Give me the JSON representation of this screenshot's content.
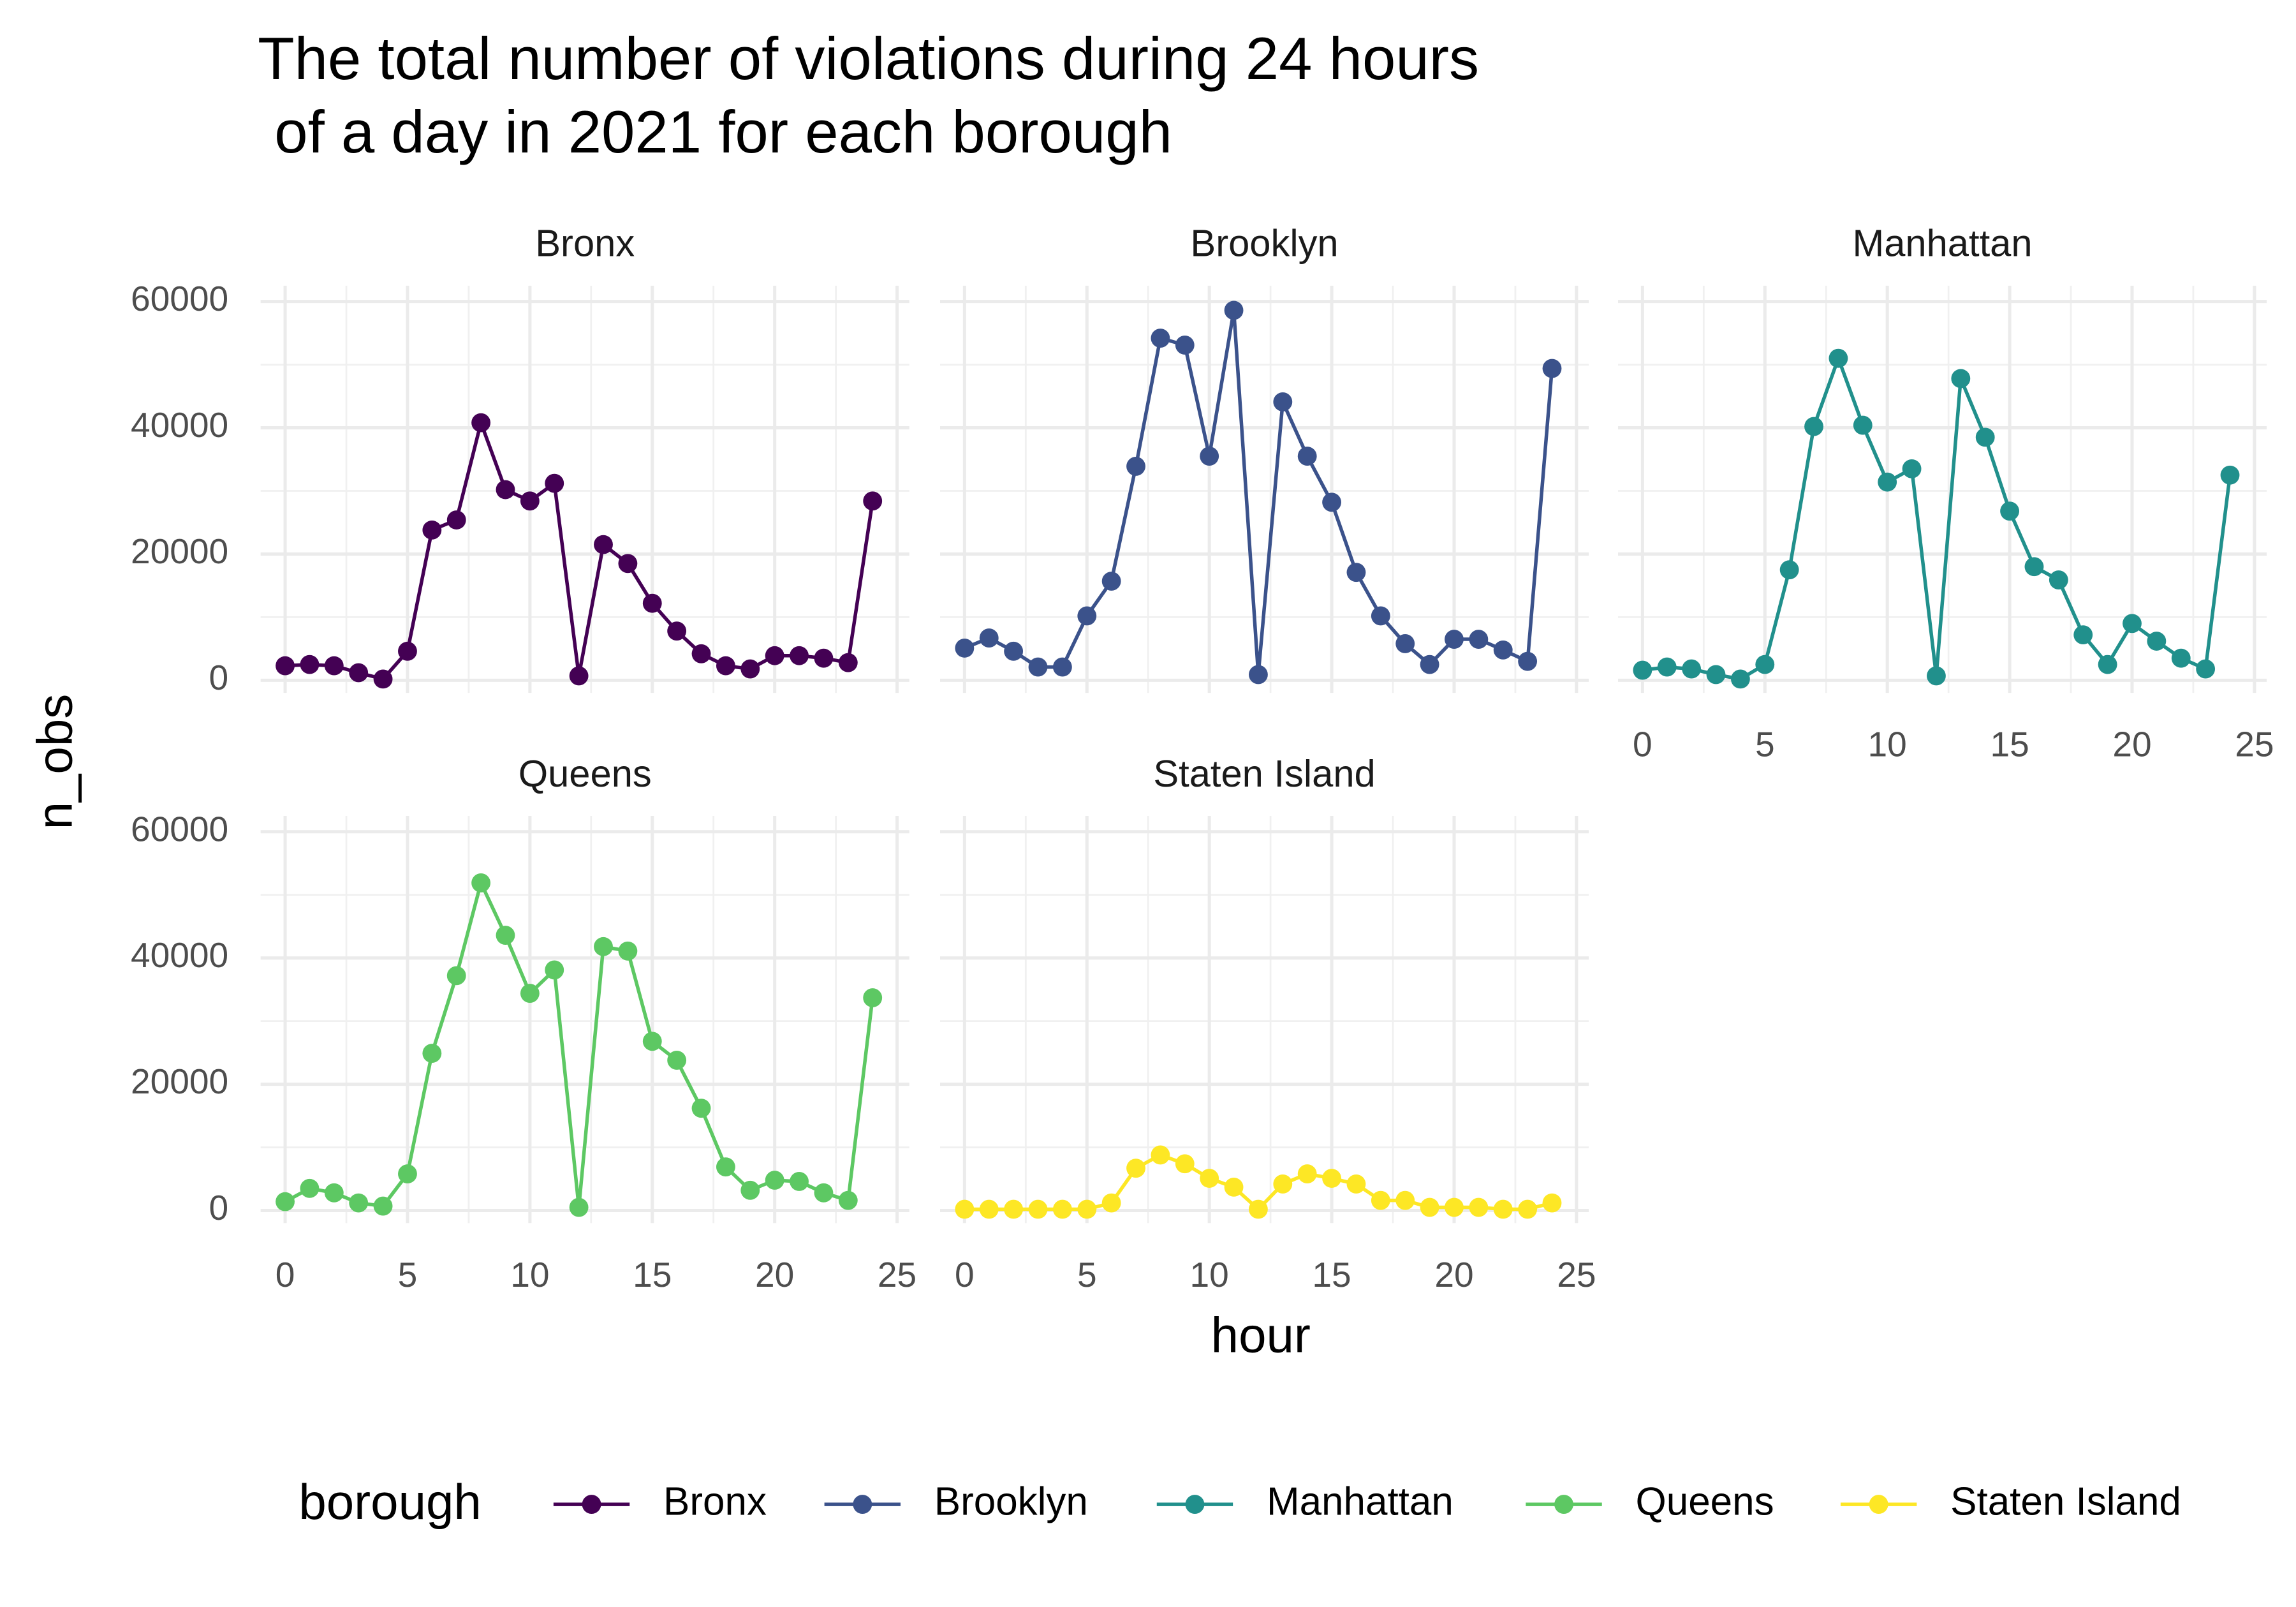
{
  "chart_data": {
    "type": "line",
    "title": [
      "The total number of violations during 24 hours",
      " of a day in 2021 for each borough"
    ],
    "x_label": "hour",
    "y_label": "n_obs",
    "legend_title": "borough",
    "legend_position": "bottom",
    "grid": true,
    "x": [
      0,
      1,
      2,
      3,
      4,
      5,
      6,
      7,
      8,
      9,
      10,
      11,
      12,
      13,
      14,
      15,
      16,
      17,
      18,
      19,
      20,
      21,
      22,
      23,
      24
    ],
    "xlim": [
      -1,
      25.5
    ],
    "xticks": [
      0,
      5,
      10,
      15,
      20,
      25
    ],
    "ylim": [
      -2000,
      62500
    ],
    "yticks": [
      0,
      20000,
      40000,
      60000
    ],
    "series": [
      {
        "name": "Bronx",
        "color": "#440154",
        "values": [
          2300,
          2500,
          2300,
          1200,
          200,
          4600,
          23800,
          25400,
          40800,
          30200,
          28400,
          31200,
          700,
          21500,
          18500,
          12200,
          7800,
          4200,
          2300,
          1800,
          3900,
          3900,
          3500,
          2800,
          28400
        ]
      },
      {
        "name": "Brooklyn",
        "color": "#3b528b",
        "values": [
          5100,
          6700,
          4600,
          2100,
          2100,
          10200,
          15700,
          33900,
          54200,
          53100,
          35500,
          58600,
          900,
          44100,
          35500,
          28200,
          17100,
          10200,
          5800,
          2500,
          6500,
          6500,
          4800,
          3000,
          49400
        ]
      },
      {
        "name": "Manhattan",
        "color": "#21908c",
        "values": [
          1600,
          2100,
          1800,
          900,
          200,
          2500,
          17500,
          40200,
          51000,
          40400,
          31400,
          33500,
          700,
          47800,
          38500,
          26800,
          18000,
          15900,
          7200,
          2500,
          9000,
          6200,
          3500,
          1800,
          32500
        ]
      },
      {
        "name": "Queens",
        "color": "#5dc863",
        "values": [
          1400,
          3500,
          2800,
          1200,
          700,
          5800,
          24900,
          37200,
          51900,
          43600,
          34400,
          38100,
          500,
          41800,
          41100,
          26800,
          23800,
          16200,
          6900,
          3200,
          4800,
          4600,
          2800,
          1600,
          33700
        ]
      },
      {
        "name": "Staten Island",
        "color": "#fde725",
        "values": [
          200,
          200,
          200,
          200,
          200,
          200,
          1200,
          6700,
          8800,
          7400,
          5100,
          3700,
          200,
          4200,
          5800,
          5100,
          4200,
          1600,
          1600,
          500,
          500,
          500,
          200,
          200,
          1200
        ]
      }
    ]
  }
}
